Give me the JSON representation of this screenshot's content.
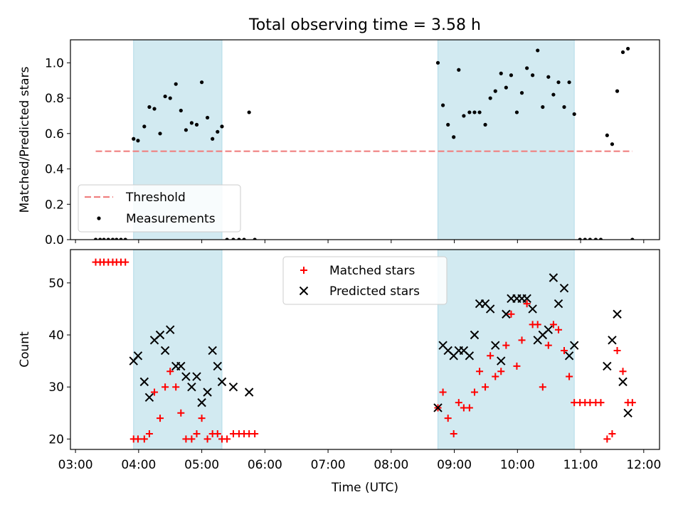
{
  "figure": {
    "title": "Total observing time = 3.58 h"
  },
  "colors": {
    "shade": "#add8e6",
    "threshold": "#f08080",
    "measurement": "#000000",
    "matched": "#ff0000",
    "predicted": "#000000"
  },
  "chart_data": [
    {
      "type": "scatter",
      "ylabel": "Matched/Predicted stars",
      "xlim": [
        2.92,
        12.25
      ],
      "ylim": [
        0,
        1.13
      ],
      "yticks": [
        0.0,
        0.2,
        0.4,
        0.6,
        0.8,
        1.0
      ],
      "ytick_labels": [
        "0.0",
        "0.2",
        "0.4",
        "0.6",
        "0.8",
        "1.0"
      ],
      "shaded_intervals": [
        [
          3.92,
          5.32
        ],
        [
          8.74,
          10.9
        ]
      ],
      "legend": {
        "location": "lower-left",
        "entries": [
          "Threshold",
          "Measurements"
        ]
      },
      "threshold": {
        "name": "Threshold",
        "value": 0.5,
        "x_range": [
          3.32,
          11.82
        ]
      },
      "series": [
        {
          "name": "Measurements",
          "points": [
            [
              3.32,
              0.0
            ],
            [
              3.39,
              0.0
            ],
            [
              3.45,
              0.0
            ],
            [
              3.52,
              0.0
            ],
            [
              3.59,
              0.0
            ],
            [
              3.65,
              0.0
            ],
            [
              3.72,
              0.0
            ],
            [
              3.79,
              0.0
            ],
            [
              3.92,
              0.57
            ],
            [
              3.99,
              0.56
            ],
            [
              4.09,
              0.64
            ],
            [
              4.17,
              0.75
            ],
            [
              4.25,
              0.74
            ],
            [
              4.34,
              0.6
            ],
            [
              4.42,
              0.81
            ],
            [
              4.5,
              0.8
            ],
            [
              4.59,
              0.88
            ],
            [
              4.67,
              0.73
            ],
            [
              4.75,
              0.62
            ],
            [
              4.84,
              0.66
            ],
            [
              4.92,
              0.65
            ],
            [
              5.0,
              0.89
            ],
            [
              5.09,
              0.69
            ],
            [
              5.17,
              0.57
            ],
            [
              5.25,
              0.61
            ],
            [
              5.32,
              0.64
            ],
            [
              5.4,
              0.0
            ],
            [
              5.5,
              0.0
            ],
            [
              5.59,
              0.0
            ],
            [
              5.67,
              0.0
            ],
            [
              5.75,
              0.72
            ],
            [
              5.84,
              0.0
            ],
            [
              8.74,
              1.0
            ],
            [
              8.82,
              0.76
            ],
            [
              8.9,
              0.65
            ],
            [
              8.99,
              0.58
            ],
            [
              9.07,
              0.96
            ],
            [
              9.15,
              0.7
            ],
            [
              9.24,
              0.72
            ],
            [
              9.32,
              0.72
            ],
            [
              9.4,
              0.72
            ],
            [
              9.49,
              0.65
            ],
            [
              9.57,
              0.8
            ],
            [
              9.65,
              0.84
            ],
            [
              9.74,
              0.94
            ],
            [
              9.82,
              0.86
            ],
            [
              9.9,
              0.93
            ],
            [
              9.99,
              0.72
            ],
            [
              10.07,
              0.83
            ],
            [
              10.15,
              0.97
            ],
            [
              10.24,
              0.93
            ],
            [
              10.32,
              1.07
            ],
            [
              10.4,
              0.75
            ],
            [
              10.49,
              0.92
            ],
            [
              10.57,
              0.82
            ],
            [
              10.65,
              0.89
            ],
            [
              10.74,
              0.75
            ],
            [
              10.82,
              0.89
            ],
            [
              10.9,
              0.71
            ],
            [
              10.99,
              0.0
            ],
            [
              11.07,
              0.0
            ],
            [
              11.15,
              0.0
            ],
            [
              11.24,
              0.0
            ],
            [
              11.32,
              0.0
            ],
            [
              11.42,
              0.59
            ],
            [
              11.5,
              0.54
            ],
            [
              11.58,
              0.84
            ],
            [
              11.67,
              1.06
            ],
            [
              11.75,
              1.08
            ],
            [
              11.82,
              0.0
            ]
          ]
        }
      ]
    },
    {
      "type": "scatter",
      "xlabel": "Time (UTC)",
      "ylabel": "Count",
      "xlim": [
        2.92,
        12.25
      ],
      "ylim": [
        18,
        56.4
      ],
      "xticks": [
        3,
        4,
        5,
        6,
        7,
        8,
        9,
        10,
        11,
        12
      ],
      "xtick_labels": [
        "03:00",
        "04:00",
        "05:00",
        "06:00",
        "07:00",
        "08:00",
        "09:00",
        "10:00",
        "11:00",
        "12:00"
      ],
      "yticks": [
        20,
        30,
        40,
        50
      ],
      "ytick_labels": [
        "20",
        "30",
        "40",
        "50"
      ],
      "shaded_intervals": [
        [
          3.92,
          5.32
        ],
        [
          8.74,
          10.9
        ]
      ],
      "legend": {
        "location": "upper-center",
        "entries": [
          "Matched stars",
          "Predicted stars"
        ]
      },
      "series": [
        {
          "name": "Matched stars",
          "points": [
            [
              3.32,
              54
            ],
            [
              3.39,
              54
            ],
            [
              3.45,
              54
            ],
            [
              3.52,
              54
            ],
            [
              3.59,
              54
            ],
            [
              3.65,
              54
            ],
            [
              3.72,
              54
            ],
            [
              3.79,
              54
            ],
            [
              3.92,
              20
            ],
            [
              3.99,
              20
            ],
            [
              4.09,
              20
            ],
            [
              4.17,
              21
            ],
            [
              4.25,
              29
            ],
            [
              4.34,
              24
            ],
            [
              4.42,
              30
            ],
            [
              4.5,
              33
            ],
            [
              4.59,
              30
            ],
            [
              4.67,
              25
            ],
            [
              4.75,
              20
            ],
            [
              4.84,
              20
            ],
            [
              4.92,
              21
            ],
            [
              5.0,
              24
            ],
            [
              5.09,
              20
            ],
            [
              5.17,
              21
            ],
            [
              5.25,
              21
            ],
            [
              5.32,
              20
            ],
            [
              5.4,
              20
            ],
            [
              5.5,
              21
            ],
            [
              5.59,
              21
            ],
            [
              5.67,
              21
            ],
            [
              5.75,
              21
            ],
            [
              5.84,
              21
            ],
            [
              8.74,
              26
            ],
            [
              8.82,
              29
            ],
            [
              8.9,
              24
            ],
            [
              8.99,
              21
            ],
            [
              9.07,
              27
            ],
            [
              9.15,
              26
            ],
            [
              9.24,
              26
            ],
            [
              9.32,
              29
            ],
            [
              9.4,
              33
            ],
            [
              9.49,
              30
            ],
            [
              9.57,
              36
            ],
            [
              9.65,
              32
            ],
            [
              9.74,
              33
            ],
            [
              9.82,
              38
            ],
            [
              9.9,
              44
            ],
            [
              9.99,
              34
            ],
            [
              10.07,
              39
            ],
            [
              10.15,
              46
            ],
            [
              10.24,
              42
            ],
            [
              10.32,
              42
            ],
            [
              10.4,
              30
            ],
            [
              10.49,
              38
            ],
            [
              10.57,
              42
            ],
            [
              10.65,
              41
            ],
            [
              10.74,
              37
            ],
            [
              10.82,
              32
            ],
            [
              10.9,
              27
            ],
            [
              10.99,
              27
            ],
            [
              11.07,
              27
            ],
            [
              11.15,
              27
            ],
            [
              11.24,
              27
            ],
            [
              11.32,
              27
            ],
            [
              11.42,
              20
            ],
            [
              11.5,
              21
            ],
            [
              11.58,
              37
            ],
            [
              11.67,
              33
            ],
            [
              11.75,
              27
            ],
            [
              11.82,
              27
            ]
          ]
        },
        {
          "name": "Predicted stars",
          "points": [
            [
              3.92,
              35
            ],
            [
              3.99,
              36
            ],
            [
              4.09,
              31
            ],
            [
              4.17,
              28
            ],
            [
              4.25,
              39
            ],
            [
              4.34,
              40
            ],
            [
              4.42,
              37
            ],
            [
              4.5,
              41
            ],
            [
              4.59,
              34
            ],
            [
              4.67,
              34
            ],
            [
              4.75,
              32
            ],
            [
              4.84,
              30
            ],
            [
              4.92,
              32
            ],
            [
              5.0,
              27
            ],
            [
              5.09,
              29
            ],
            [
              5.17,
              37
            ],
            [
              5.25,
              34
            ],
            [
              5.32,
              31
            ],
            [
              5.5,
              30
            ],
            [
              5.75,
              29
            ],
            [
              8.74,
              26
            ],
            [
              8.82,
              38
            ],
            [
              8.9,
              37
            ],
            [
              8.99,
              36
            ],
            [
              9.07,
              37
            ],
            [
              9.15,
              37
            ],
            [
              9.24,
              36
            ],
            [
              9.32,
              40
            ],
            [
              9.4,
              46
            ],
            [
              9.49,
              46
            ],
            [
              9.57,
              45
            ],
            [
              9.65,
              38
            ],
            [
              9.74,
              35
            ],
            [
              9.82,
              44
            ],
            [
              9.9,
              47
            ],
            [
              9.99,
              47
            ],
            [
              10.07,
              47
            ],
            [
              10.15,
              47
            ],
            [
              10.24,
              45
            ],
            [
              10.32,
              39
            ],
            [
              10.4,
              40
            ],
            [
              10.49,
              41
            ],
            [
              10.57,
              51
            ],
            [
              10.65,
              46
            ],
            [
              10.74,
              49
            ],
            [
              10.82,
              36
            ],
            [
              10.9,
              38
            ],
            [
              11.42,
              34
            ],
            [
              11.5,
              39
            ],
            [
              11.58,
              44
            ],
            [
              11.67,
              31
            ],
            [
              11.75,
              25
            ]
          ]
        }
      ]
    }
  ]
}
